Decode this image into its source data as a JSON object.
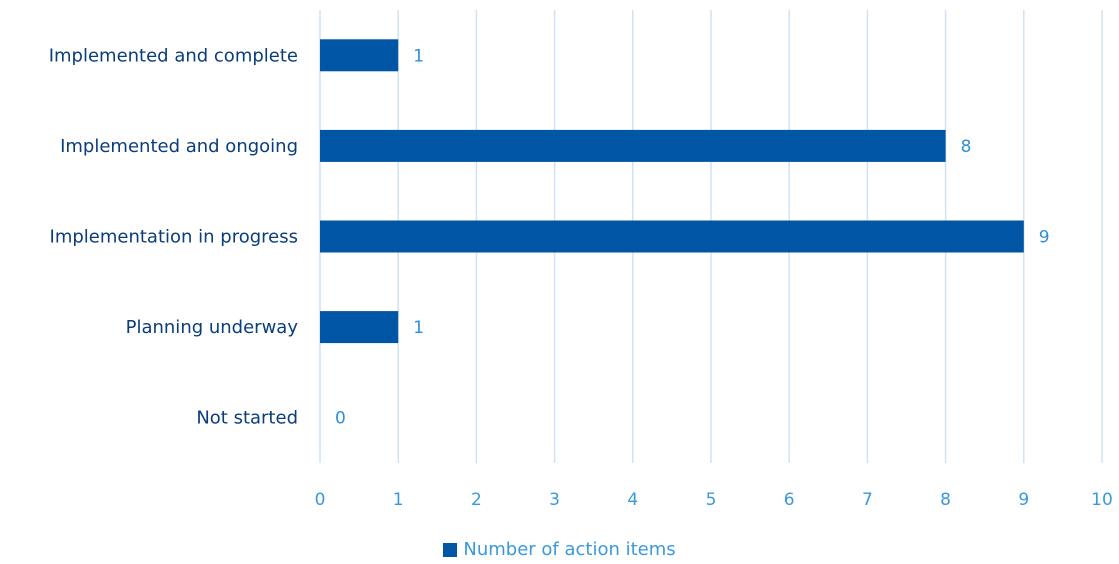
{
  "chart_data": {
    "type": "bar",
    "orientation": "horizontal",
    "categories": [
      "Implemented and complete",
      "Implemented and ongoing",
      "Implementation in progress",
      "Planning underway",
      "Not started"
    ],
    "series": [
      {
        "name": "Number of action items",
        "values": [
          1,
          8,
          9,
          1,
          0
        ]
      }
    ],
    "xlim": [
      0,
      10
    ],
    "xticks": [
      "0",
      "1",
      "2",
      "3",
      "4",
      "5",
      "6",
      "7",
      "8",
      "9",
      "10"
    ],
    "grid": "vertical",
    "legend": "bottom-center",
    "data_labels": true
  },
  "colors": {
    "bar": "#0055a4",
    "grid": "#cfe3f5",
    "category_text": "#0a3d7a",
    "tick_text": "#3a9ad9",
    "data_label_text": "#2f8fd8",
    "legend_text": "#3a9ad9"
  }
}
